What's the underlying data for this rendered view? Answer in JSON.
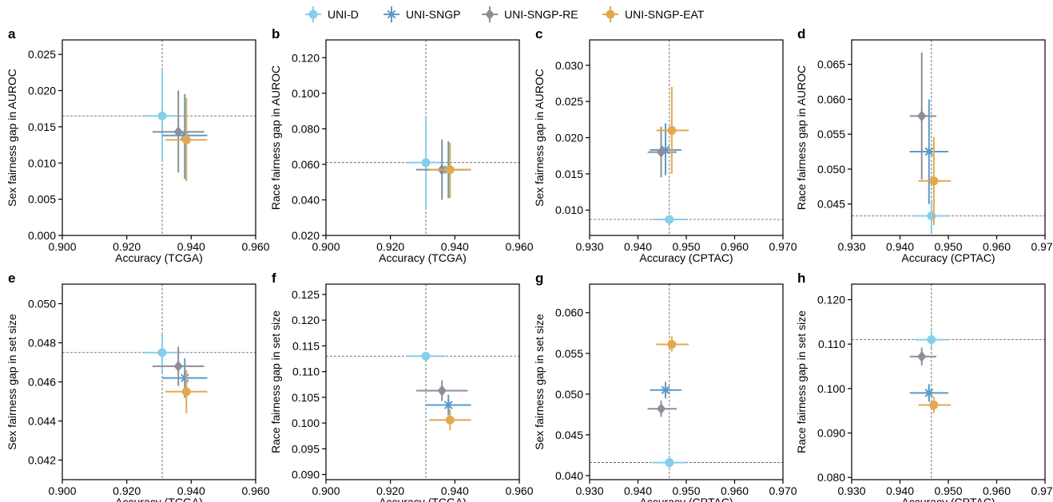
{
  "legend": {
    "items": [
      {
        "label": "UNI-D",
        "color": "#87CEEB",
        "marker": "circle"
      },
      {
        "label": "UNI-SNGP",
        "color": "#5B9BC8",
        "marker": "star"
      },
      {
        "label": "UNI-SNGP-RE",
        "color": "#8E8E99",
        "marker": "diamond"
      },
      {
        "label": "UNI-SNGP-EAT",
        "color": "#E3A84E",
        "marker": "circle"
      }
    ]
  },
  "chart_data": [
    {
      "panel": "a",
      "type": "scatter",
      "xlabel": "Accuracy (TCGA)",
      "ylabel": "Sex fairness gap in AUROC",
      "xlim": [
        0.9,
        0.96
      ],
      "xticks": [
        "0.900",
        "0.920",
        "0.940",
        "0.960"
      ],
      "ylim": [
        0,
        0.027
      ],
      "yticks": [
        "0.000",
        "0.005",
        "0.010",
        "0.015",
        "0.020",
        "0.025"
      ],
      "reference": {
        "x": 0.931,
        "y": 0.0165
      },
      "series": [
        {
          "name": "UNI-D",
          "x": 0.931,
          "x_err": [
            0.925,
            0.937
          ],
          "y": 0.0165,
          "y_err": [
            0.0102,
            0.0228
          ]
        },
        {
          "name": "UNI-SNGP",
          "x": 0.938,
          "x_err": [
            0.931,
            0.945
          ],
          "y": 0.0138,
          "y_err": [
            0.0078,
            0.0195
          ]
        },
        {
          "name": "UNI-SNGP-RE",
          "x": 0.936,
          "x_err": [
            0.928,
            0.944
          ],
          "y": 0.0143,
          "y_err": [
            0.0087,
            0.02
          ]
        },
        {
          "name": "UNI-SNGP-EAT",
          "x": 0.9385,
          "x_err": [
            0.932,
            0.945
          ],
          "y": 0.0132,
          "y_err": [
            0.0075,
            0.019
          ]
        }
      ]
    },
    {
      "panel": "b",
      "type": "scatter",
      "xlabel": "Accuracy (TCGA)",
      "ylabel": "Race fairness gap in AUROC",
      "xlim": [
        0.9,
        0.96
      ],
      "xticks": [
        "0.900",
        "0.920",
        "0.940",
        "0.960"
      ],
      "ylim": [
        0.02,
        0.13
      ],
      "yticks": [
        "0.020",
        "0.040",
        "0.060",
        "0.080",
        "0.100",
        "0.120"
      ],
      "reference": {
        "x": 0.931,
        "y": 0.061
      },
      "series": [
        {
          "name": "UNI-D",
          "x": 0.931,
          "x_err": [
            0.925,
            0.937
          ],
          "y": 0.061,
          "y_err": [
            0.035,
            0.087
          ]
        },
        {
          "name": "UNI-SNGP",
          "x": 0.938,
          "x_err": [
            0.931,
            0.945
          ],
          "y": 0.057,
          "y_err": [
            0.041,
            0.073
          ]
        },
        {
          "name": "UNI-SNGP-RE",
          "x": 0.936,
          "x_err": [
            0.928,
            0.944
          ],
          "y": 0.057,
          "y_err": [
            0.04,
            0.074
          ]
        },
        {
          "name": "UNI-SNGP-EAT",
          "x": 0.9385,
          "x_err": [
            0.932,
            0.945
          ],
          "y": 0.057,
          "y_err": [
            0.041,
            0.072
          ]
        }
      ]
    },
    {
      "panel": "c",
      "type": "scatter",
      "xlabel": "Accuracy (CPTAC)",
      "ylabel": "Sex fairness gap in AUROC",
      "xlim": [
        0.93,
        0.97
      ],
      "xticks": [
        "0.930",
        "0.940",
        "0.950",
        "0.960",
        "0.970"
      ],
      "ylim": [
        0.0065,
        0.0335
      ],
      "yticks": [
        "0.010",
        "0.015",
        "0.020",
        "0.025",
        "0.030"
      ],
      "reference": {
        "x": 0.9465,
        "y": 0.0087
      },
      "series": [
        {
          "name": "UNI-D",
          "x": 0.9465,
          "x_err": [
            0.943,
            0.95
          ],
          "y": 0.0087,
          "y_err": null
        },
        {
          "name": "UNI-SNGP",
          "x": 0.9457,
          "x_err": [
            0.9425,
            0.949
          ],
          "y": 0.0183,
          "y_err": [
            0.0148,
            0.022
          ]
        },
        {
          "name": "UNI-SNGP-RE",
          "x": 0.9448,
          "x_err": [
            0.942,
            0.948
          ],
          "y": 0.018,
          "y_err": [
            0.0145,
            0.0215
          ]
        },
        {
          "name": "UNI-SNGP-EAT",
          "x": 0.947,
          "x_err": [
            0.9438,
            0.9505
          ],
          "y": 0.021,
          "y_err": [
            0.015,
            0.027
          ]
        }
      ]
    },
    {
      "panel": "d",
      "type": "scatter",
      "xlabel": "Accuracy (CPTAC)",
      "ylabel": "Race fairness gap in AUROC",
      "xlim": [
        0.93,
        0.97
      ],
      "xticks": [
        "0.930",
        "0.940",
        "0.950",
        "0.960",
        "0.970"
      ],
      "ylim": [
        0.0405,
        0.0685
      ],
      "yticks": [
        "0.045",
        "0.050",
        "0.055",
        "0.060",
        "0.065"
      ],
      "reference": {
        "x": 0.9465,
        "y": 0.0433
      },
      "series": [
        {
          "name": "UNI-D",
          "x": 0.9465,
          "x_err": [
            0.943,
            0.95
          ],
          "y": 0.0433,
          "y_err": [
            0.041,
            0.0456
          ]
        },
        {
          "name": "UNI-SNGP",
          "x": 0.946,
          "x_err": [
            0.942,
            0.95
          ],
          "y": 0.0525,
          "y_err": [
            0.045,
            0.06
          ]
        },
        {
          "name": "UNI-SNGP-RE",
          "x": 0.9445,
          "x_err": [
            0.942,
            0.9475
          ],
          "y": 0.0576,
          "y_err": [
            0.0485,
            0.0667
          ]
        },
        {
          "name": "UNI-SNGP-EAT",
          "x": 0.947,
          "x_err": [
            0.9438,
            0.9505
          ],
          "y": 0.0483,
          "y_err": [
            0.042,
            0.0546
          ]
        }
      ]
    },
    {
      "panel": "e",
      "type": "scatter",
      "xlabel": "Accuracy (TCGA)",
      "ylabel": "Sex fairness gap in set size",
      "xlim": [
        0.9,
        0.96
      ],
      "xticks": [
        "0.900",
        "0.920",
        "0.940",
        "0.960"
      ],
      "ylim": [
        0.041,
        0.051
      ],
      "yticks": [
        "0.042",
        "0.044",
        "0.046",
        "0.048",
        "0.050"
      ],
      "reference": {
        "x": 0.931,
        "y": 0.0475
      },
      "series": [
        {
          "name": "UNI-D",
          "x": 0.931,
          "x_err": [
            0.925,
            0.937
          ],
          "y": 0.0475,
          "y_err": [
            0.0465,
            0.0485
          ]
        },
        {
          "name": "UNI-SNGP",
          "x": 0.938,
          "x_err": [
            0.931,
            0.945
          ],
          "y": 0.0462,
          "y_err": [
            0.0452,
            0.0472
          ]
        },
        {
          "name": "UNI-SNGP-RE",
          "x": 0.936,
          "x_err": [
            0.928,
            0.944
          ],
          "y": 0.0468,
          "y_err": [
            0.0458,
            0.0478
          ]
        },
        {
          "name": "UNI-SNGP-EAT",
          "x": 0.9385,
          "x_err": [
            0.932,
            0.945
          ],
          "y": 0.0455,
          "y_err": [
            0.0444,
            0.0466
          ]
        }
      ]
    },
    {
      "panel": "f",
      "type": "scatter",
      "xlabel": "Accuracy (TCGA)",
      "ylabel": "Race fairness gap in set size",
      "xlim": [
        0.9,
        0.96
      ],
      "xticks": [
        "0.900",
        "0.920",
        "0.940",
        "0.960"
      ],
      "ylim": [
        0.089,
        0.127
      ],
      "yticks": [
        "0.090",
        "0.095",
        "0.100",
        "0.105",
        "0.110",
        "0.115",
        "0.120",
        "0.125"
      ],
      "reference": {
        "x": 0.931,
        "y": 0.113
      },
      "series": [
        {
          "name": "UNI-D",
          "x": 0.931,
          "x_err": [
            0.925,
            0.937
          ],
          "y": 0.113,
          "y_err": null
        },
        {
          "name": "UNI-SNGP",
          "x": 0.938,
          "x_err": [
            0.931,
            0.945
          ],
          "y": 0.1035,
          "y_err": [
            0.1015,
            0.1055
          ]
        },
        {
          "name": "UNI-SNGP-RE",
          "x": 0.936,
          "x_err": [
            0.928,
            0.944
          ],
          "y": 0.1063,
          "y_err": [
            0.1043,
            0.1083
          ]
        },
        {
          "name": "UNI-SNGP-EAT",
          "x": 0.9385,
          "x_err": [
            0.932,
            0.945
          ],
          "y": 0.1006,
          "y_err": [
            0.0986,
            0.1026
          ]
        }
      ]
    },
    {
      "panel": "g",
      "type": "scatter",
      "xlabel": "Accuracy (CPTAC)",
      "ylabel": "Sex fairness gap in set size",
      "xlim": [
        0.93,
        0.97
      ],
      "xticks": [
        "0.930",
        "0.940",
        "0.950",
        "0.960",
        "0.970"
      ],
      "ylim": [
        0.0395,
        0.0635
      ],
      "yticks": [
        "0.040",
        "0.045",
        "0.050",
        "0.055",
        "0.060"
      ],
      "reference": {
        "x": 0.9465,
        "y": 0.0416
      },
      "series": [
        {
          "name": "UNI-D",
          "x": 0.9465,
          "x_err": [
            0.943,
            0.95
          ],
          "y": 0.0416,
          "y_err": [
            0.0408,
            0.0424
          ]
        },
        {
          "name": "UNI-SNGP",
          "x": 0.9457,
          "x_err": [
            0.9425,
            0.949
          ],
          "y": 0.0505,
          "y_err": [
            0.0495,
            0.0515
          ]
        },
        {
          "name": "UNI-SNGP-RE",
          "x": 0.9448,
          "x_err": [
            0.942,
            0.948
          ],
          "y": 0.0482,
          "y_err": [
            0.0472,
            0.0492
          ]
        },
        {
          "name": "UNI-SNGP-EAT",
          "x": 0.947,
          "x_err": [
            0.9438,
            0.9505
          ],
          "y": 0.0561,
          "y_err": [
            0.0552,
            0.0571
          ]
        }
      ]
    },
    {
      "panel": "h",
      "type": "scatter",
      "xlabel": "Accuracy (CPTAC)",
      "ylabel": "Race fairness gap in set size",
      "xlim": [
        0.93,
        0.97
      ],
      "xticks": [
        "0.930",
        "0.940",
        "0.950",
        "0.960",
        "0.970"
      ],
      "ylim": [
        0.0795,
        0.1235
      ],
      "yticks": [
        "0.080",
        "0.090",
        "0.100",
        "0.110",
        "0.120"
      ],
      "reference": {
        "x": 0.9465,
        "y": 0.111
      },
      "series": [
        {
          "name": "UNI-D",
          "x": 0.9465,
          "x_err": [
            0.943,
            0.95
          ],
          "y": 0.111,
          "y_err": [
            0.109,
            0.113
          ]
        },
        {
          "name": "UNI-SNGP",
          "x": 0.946,
          "x_err": [
            0.942,
            0.95
          ],
          "y": 0.099,
          "y_err": [
            0.097,
            0.101
          ]
        },
        {
          "name": "UNI-SNGP-RE",
          "x": 0.9445,
          "x_err": [
            0.942,
            0.9475
          ],
          "y": 0.1072,
          "y_err": [
            0.1052,
            0.1092
          ]
        },
        {
          "name": "UNI-SNGP-EAT",
          "x": 0.947,
          "x_err": [
            0.9438,
            0.9505
          ],
          "y": 0.0963,
          "y_err": [
            0.0945,
            0.0981
          ]
        }
      ]
    }
  ]
}
